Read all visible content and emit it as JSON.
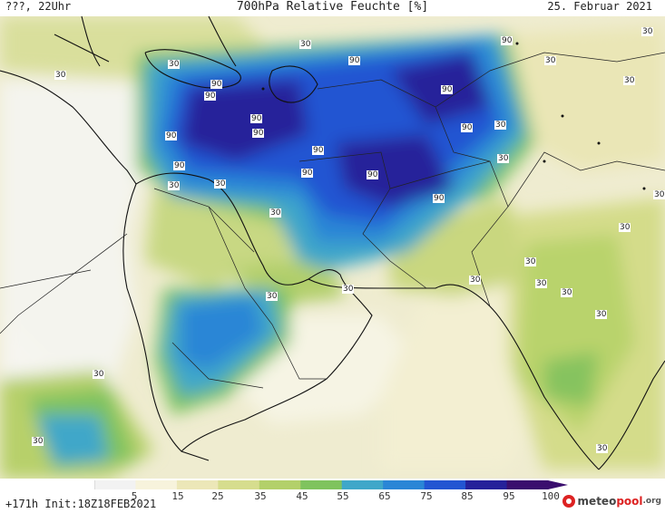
{
  "header": {
    "left_label": "???, 22Uhr",
    "title": "700hPa Relative Feuchte [%]",
    "date": "25. Februar 2021"
  },
  "footer": {
    "run_info": "+171h  Init:18Z18FEB2021"
  },
  "logo": {
    "text_main": "meteo",
    "text_accent": "pool",
    "text_suffix": ".org"
  },
  "colorbar": {
    "labels": [
      "5",
      "15",
      "25",
      "35",
      "45",
      "55",
      "65",
      "75",
      "85",
      "95",
      "100"
    ],
    "colors": [
      "#f2f2f2",
      "#f7f3dc",
      "#ece7b8",
      "#d6dd8e",
      "#b3d06a",
      "#7fc35e",
      "#3fa7c9",
      "#2a86d6",
      "#2255d2",
      "#25219a",
      "#3a0e6e"
    ]
  },
  "map": {
    "contour_labels_30": [
      "30",
      "30",
      "30",
      "30",
      "30",
      "30",
      "30",
      "30",
      "30",
      "30",
      "30",
      "30",
      "30",
      "30",
      "30",
      "30",
      "30",
      "30",
      "30",
      "30",
      "30",
      "30",
      "30"
    ],
    "contour_labels_90": [
      "90",
      "90",
      "90",
      "90",
      "90",
      "90",
      "90",
      "90",
      "90",
      "90",
      "90",
      "90",
      "90",
      "90"
    ]
  }
}
